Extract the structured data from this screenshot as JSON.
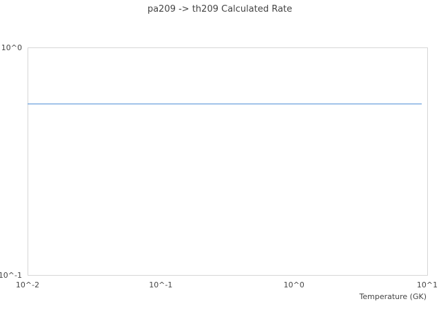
{
  "chart_data": {
    "type": "line",
    "title": "pa209 -> th209 Calculated Rate",
    "xlabel": "Temperature (GK)",
    "ylabel": "",
    "x_scale": "log",
    "y_scale": "log",
    "xlim": [
      0.01,
      10
    ],
    "ylim": [
      0.1,
      1
    ],
    "x_ticks": [
      "10^-2",
      "10^-1",
      "10^0",
      "10^1"
    ],
    "y_ticks": [
      "10^0",
      "10^-1"
    ],
    "grid": false,
    "series": [
      {
        "color": "#6a9fdc",
        "x": [
          0.01,
          9.1
        ],
        "y": [
          0.565,
          0.565
        ]
      }
    ]
  }
}
